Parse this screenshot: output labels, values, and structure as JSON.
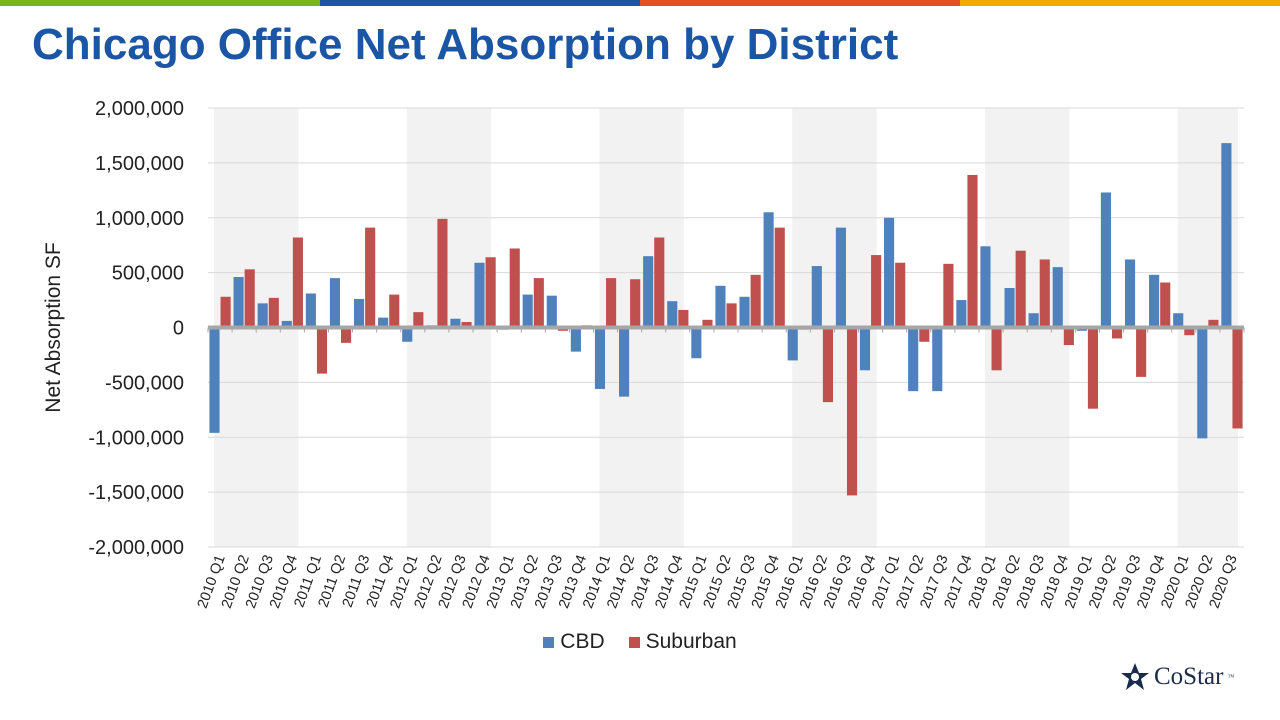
{
  "colors": {
    "topbar": [
      "#7ab51d",
      "#1a56a5",
      "#e2521f",
      "#f5a800"
    ],
    "title": "#1a56a5",
    "cbd": "#4f81bd",
    "suburban": "#c0504d",
    "band": "#f2f2f2",
    "grid": "#d9d9d9",
    "zero_line": "#a6a6a6"
  },
  "title": "Chicago Office Net Absorption by District",
  "logo_text": "CoStar",
  "logo_tm": "™",
  "chart_data": {
    "type": "bar",
    "ylabel": "Net Absorption SF",
    "xlabel": "",
    "ylim": [
      -2000000,
      2000000
    ],
    "yticks": [
      2000000,
      1500000,
      1000000,
      500000,
      0,
      -500000,
      -1000000,
      -1500000,
      -2000000
    ],
    "ytick_labels": [
      "2,000,000",
      "1,500,000",
      "1,000,000",
      "500,000",
      "0",
      "-500,000",
      "-1,000,000",
      "-1,500,000",
      "-2,000,000"
    ],
    "grid": true,
    "legend_position": "bottom",
    "shaded_years": [
      "2010",
      "2012",
      "2014",
      "2016",
      "2018",
      "2020"
    ],
    "categories": [
      "2010 Q1",
      "2010 Q2",
      "2010 Q3",
      "2010 Q4",
      "2011 Q1",
      "2011 Q2",
      "2011 Q3",
      "2011 Q4",
      "2012 Q1",
      "2012 Q2",
      "2012 Q3",
      "2012 Q4",
      "2013 Q1",
      "2013 Q2",
      "2013 Q3",
      "2013 Q4",
      "2014 Q1",
      "2014 Q2",
      "2014 Q3",
      "2014 Q4",
      "2015 Q1",
      "2015 Q2",
      "2015 Q3",
      "2015 Q4",
      "2016 Q1",
      "2016 Q2",
      "2016 Q3",
      "2016 Q4",
      "2017 Q1",
      "2017 Q2",
      "2017 Q3",
      "2017 Q4",
      "2018 Q1",
      "2018 Q2",
      "2018 Q3",
      "2018 Q4",
      "2019 Q1",
      "2019 Q2",
      "2019 Q3",
      "2019 Q4",
      "2020 Q1",
      "2020 Q2",
      "2020 Q3"
    ],
    "series": [
      {
        "name": "CBD",
        "values": [
          -960000,
          460000,
          220000,
          60000,
          310000,
          450000,
          260000,
          90000,
          -130000,
          20000,
          80000,
          590000,
          -20000,
          300000,
          290000,
          -220000,
          -560000,
          -630000,
          650000,
          240000,
          -280000,
          380000,
          280000,
          1050000,
          -300000,
          560000,
          910000,
          -390000,
          1000000,
          -580000,
          -580000,
          250000,
          740000,
          360000,
          130000,
          550000,
          -30000,
          1230000,
          620000,
          480000,
          130000,
          -1010000,
          1680000
        ]
      },
      {
        "name": "Suburban",
        "values": [
          280000,
          530000,
          270000,
          820000,
          -420000,
          -140000,
          910000,
          300000,
          140000,
          990000,
          50000,
          640000,
          720000,
          450000,
          -30000,
          20000,
          450000,
          440000,
          820000,
          160000,
          70000,
          220000,
          480000,
          910000,
          -20000,
          -680000,
          -1530000,
          660000,
          590000,
          -130000,
          580000,
          1390000,
          -390000,
          700000,
          620000,
          -160000,
          -740000,
          -100000,
          -450000,
          410000,
          -70000,
          70000,
          -920000
        ]
      }
    ]
  }
}
